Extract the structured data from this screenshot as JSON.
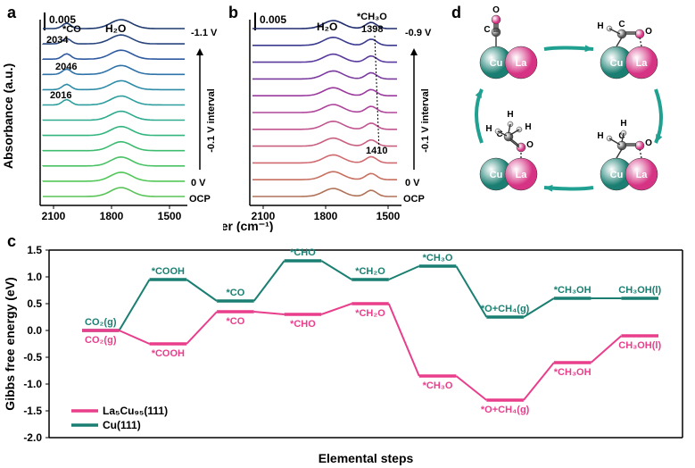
{
  "panelA": {
    "label": "a",
    "peaks": {
      "co": "*CO",
      "co_wn1": "2034",
      "co_wn2": "2046",
      "co_wn3": "2016",
      "h2o": "H₂O"
    },
    "scale_bar": "0.005",
    "y_axis": "Absorbance (a.u.)",
    "x_axis": "Wavenumber (cm⁻¹)",
    "xticks": [
      "2100",
      "1800",
      "1500"
    ],
    "right_top": "-1.1 V",
    "right_bottom": "0 V",
    "right_ocp": "OCP",
    "arrow_label": "-0.1 V interval",
    "spectra": {
      "count": 12,
      "colors": [
        "#1e3a6e",
        "#28457d",
        "#2e5aa0",
        "#2f73a9",
        "#2f8ca8",
        "#2f9e9e",
        "#2eab8e",
        "#32b57e",
        "#3dbc70",
        "#48c264",
        "#53c85a",
        "#58c458"
      ]
    }
  },
  "panelB": {
    "label": "b",
    "peaks": {
      "h2o": "H₂O",
      "ch3o": "*CH₃O",
      "ch3o_wn1": "1398",
      "ch3o_wn2": "1410"
    },
    "scale_bar": "0.005",
    "xticks": [
      "2100",
      "1800",
      "1500"
    ],
    "right_top": "-0.9 V",
    "right_bottom": "0 V",
    "right_ocp": "OCP",
    "arrow_label": "-0.1 V interval",
    "spectra": {
      "count": 11,
      "colors": [
        "#1e2c6e",
        "#3a3a8e",
        "#5a3a9e",
        "#7a3a9e",
        "#9a3a9e",
        "#b0459c",
        "#c05590",
        "#c86080",
        "#d06a70",
        "#c87060",
        "#b07258"
      ]
    }
  },
  "panelC": {
    "label": "c",
    "y_axis": "Gibbs free energy (eV)",
    "x_axis": "Elemental steps",
    "ylim": [
      -2.0,
      1.5
    ],
    "ytick_step": 0.5,
    "yticks": [
      "1.5",
      "1.0",
      "0.5",
      "0.0",
      "-0.5",
      "-1.0",
      "-1.5",
      "-2.0"
    ],
    "legend": [
      {
        "name": "La₅Cu₉₅(111)",
        "color": "#e83e8c"
      },
      {
        "name": "Cu(111)",
        "color": "#1a7f72"
      }
    ],
    "steps": [
      "CO₂(g)",
      "*COOH",
      "*CO",
      "*CHO",
      "*CH₂O",
      "*CH₃O",
      "*O+CH₄(g)",
      "*CH₃OH",
      "CH₃OH(l)"
    ],
    "series": {
      "Cu111": {
        "color": "#1a7f72",
        "values": [
          0.0,
          0.95,
          0.55,
          1.3,
          0.95,
          1.2,
          0.25,
          0.6,
          0.6
        ]
      },
      "La5Cu95": {
        "color": "#e83e8c",
        "values": [
          0.0,
          -0.25,
          0.35,
          0.3,
          0.5,
          -0.85,
          -1.3,
          -0.6,
          -0.1
        ]
      }
    }
  },
  "panelD": {
    "label": "d",
    "atoms": {
      "Cu": {
        "color": "#1a7f72",
        "label": "Cu"
      },
      "La": {
        "color": "#d63384",
        "label": "La"
      },
      "O": {
        "color": "#d63384",
        "radius": 5
      },
      "C": {
        "color": "#555555",
        "radius": 5
      },
      "H": {
        "color": "#bbbbbb",
        "radius": 3
      }
    },
    "arrow_color": "#20a090"
  },
  "global": {
    "bg": "#ffffff",
    "font": "Arial"
  }
}
